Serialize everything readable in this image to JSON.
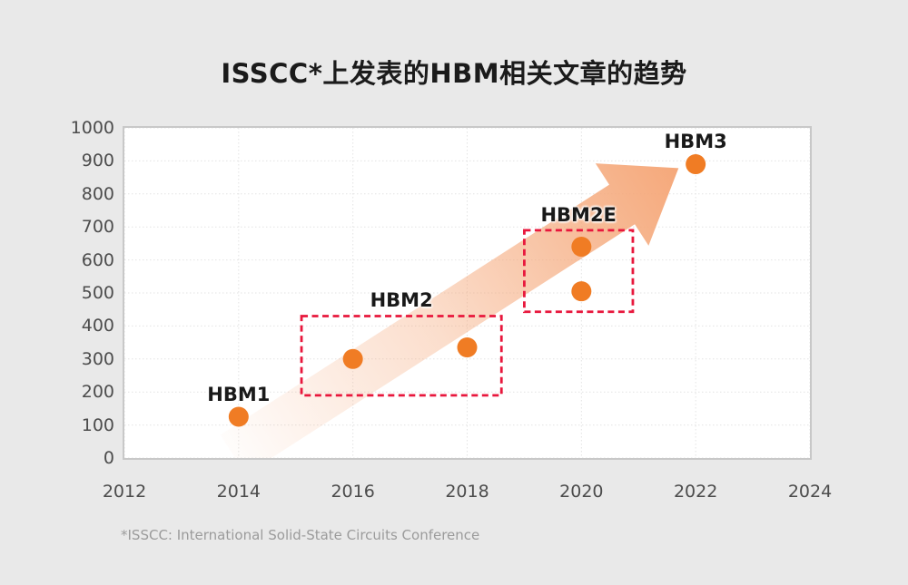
{
  "page": {
    "background": "#e9e9e9",
    "footnote": "*ISSCC: International Solid-State Circuits Conference"
  },
  "chart_data": {
    "type": "scatter",
    "title": "ISSCC*上发表的HBM相关文章的趋势",
    "xlabel": "",
    "ylabel": "",
    "xlim": [
      2012,
      2024
    ],
    "ylim": [
      0,
      1000
    ],
    "x_ticks": [
      2012,
      2014,
      2016,
      2018,
      2020,
      2022,
      2024
    ],
    "y_ticks": [
      0,
      100,
      200,
      300,
      400,
      500,
      600,
      700,
      800,
      900,
      1000
    ],
    "grid": true,
    "legend": "none",
    "point_color": "#f07c24",
    "point_radius_px": 11,
    "points": [
      {
        "x": 2014,
        "y": 125,
        "label": "HBM1"
      },
      {
        "x": 2016,
        "y": 300
      },
      {
        "x": 2018,
        "y": 335
      },
      {
        "x": 2020,
        "y": 505
      },
      {
        "x": 2020,
        "y": 640
      },
      {
        "x": 2022,
        "y": 890,
        "label": "HBM3"
      }
    ],
    "annotations": {
      "boxes": [
        {
          "label": "HBM2",
          "x1": 2015.1,
          "y1": 190,
          "x2": 2018.6,
          "y2": 430,
          "color": "#e8173c"
        },
        {
          "label": "HBM2E",
          "x1": 2019.0,
          "y1": 443,
          "x2": 2020.9,
          "y2": 690,
          "color": "#e8173c"
        }
      ],
      "arrow": {
        "x1": 2013.9,
        "y1": 10,
        "x2": 2021.7,
        "y2": 878,
        "color": "#f5a87a"
      }
    }
  }
}
